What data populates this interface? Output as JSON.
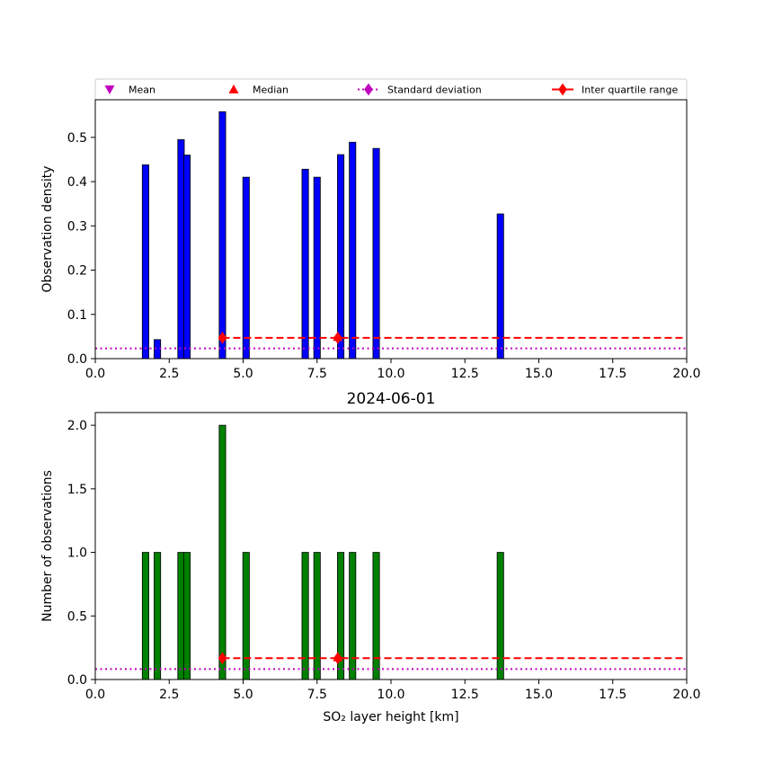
{
  "legend": [
    {
      "label": "Mean",
      "marker": "triangle-down",
      "color": "#bf00bf"
    },
    {
      "label": "Median",
      "marker": "triangle-up",
      "color": "#ff0000"
    },
    {
      "label": "Standard deviation",
      "marker": "diamond-dotted-line",
      "color": "#bf00bf"
    },
    {
      "label": "Inter quartile range",
      "marker": "diamond-dashed-line",
      "color": "#ff0000"
    }
  ],
  "chart_data": [
    {
      "type": "bar",
      "ylabel": "Observation density",
      "xlim": [
        0,
        20
      ],
      "ylim": [
        0,
        0.585
      ],
      "xticks": [
        "0.0",
        "2.5",
        "5.0",
        "7.5",
        "10.0",
        "12.5",
        "15.0",
        "17.5",
        "20.0"
      ],
      "yticks": [
        "0.0",
        "0.1",
        "0.2",
        "0.3",
        "0.4",
        "0.5"
      ],
      "bar_color": "#0000ff",
      "bar_width": 0.22,
      "x": [
        1.7,
        2.1,
        2.9,
        3.1,
        4.3,
        5.1,
        7.1,
        7.5,
        8.3,
        8.7,
        9.5,
        13.7
      ],
      "values": [
        0.438,
        0.043,
        0.495,
        0.46,
        0.558,
        0.41,
        0.428,
        0.41,
        0.461,
        0.489,
        0.475,
        0.327
      ],
      "std_line_y": 0.023,
      "iqr": {
        "x_start": 4.3,
        "x_end": 20,
        "y": 0.047
      },
      "median_marker": {
        "x": 8.2,
        "y": 0.047
      },
      "iqr_markers_x": [
        4.3,
        8.2
      ],
      "grid": false
    },
    {
      "type": "bar",
      "title": "2024-06-01",
      "xlabel": "SO₂ layer height [km]",
      "ylabel": "Number of observations",
      "xlim": [
        0,
        20
      ],
      "ylim": [
        0,
        2.1
      ],
      "xticks": [
        "0.0",
        "2.5",
        "5.0",
        "7.5",
        "10.0",
        "12.5",
        "15.0",
        "17.5",
        "20.0"
      ],
      "yticks": [
        "0.0",
        "0.5",
        "1.0",
        "1.5",
        "2.0"
      ],
      "bar_color": "#008000",
      "bar_width": 0.22,
      "x": [
        1.7,
        2.1,
        2.9,
        3.1,
        4.3,
        5.1,
        7.1,
        7.5,
        8.3,
        8.7,
        9.5,
        13.7
      ],
      "values": [
        1,
        1,
        1,
        1,
        2,
        1,
        1,
        1,
        1,
        1,
        1,
        1
      ],
      "std_line_y": 0.082,
      "iqr": {
        "x_start": 4.3,
        "x_end": 20,
        "y": 0.168
      },
      "median_marker": {
        "x": 8.2,
        "y": 0.168
      },
      "iqr_markers_x": [
        4.3,
        8.2
      ],
      "grid": false
    }
  ]
}
